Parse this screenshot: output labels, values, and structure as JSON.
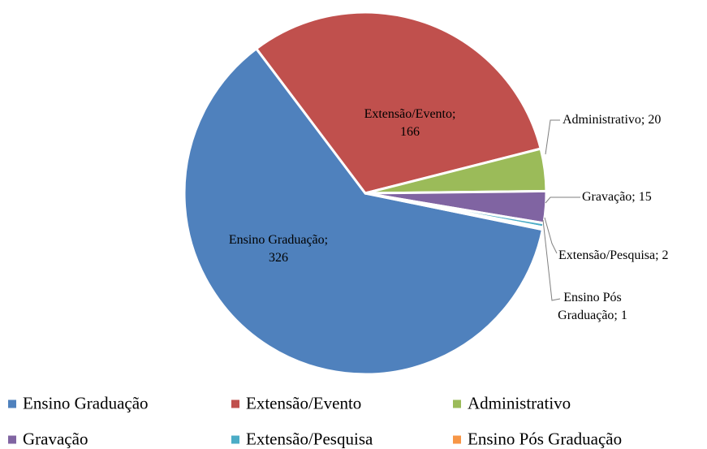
{
  "chart_data": {
    "type": "pie",
    "categories": [
      "Ensino Graduação",
      "Extensão/Evento",
      "Administrativo",
      "Gravação",
      "Extensão/Pesquisa",
      "Ensino Pós Graduação"
    ],
    "values": [
      326,
      166,
      20,
      15,
      2,
      1
    ],
    "value_labels": [
      "Ensino Graduação;\n326",
      "Extensão/Evento;\n166",
      "Administrativo; 20",
      "Gravação;  15",
      "Extensão/Pesquisa; 2",
      "Ensino Pós\nGraduação; 1"
    ],
    "colors": [
      "#4f81bd",
      "#c0504d",
      "#9bbb59",
      "#8064a2",
      "#4bacc6",
      "#f79646"
    ],
    "legend": "bottom"
  }
}
